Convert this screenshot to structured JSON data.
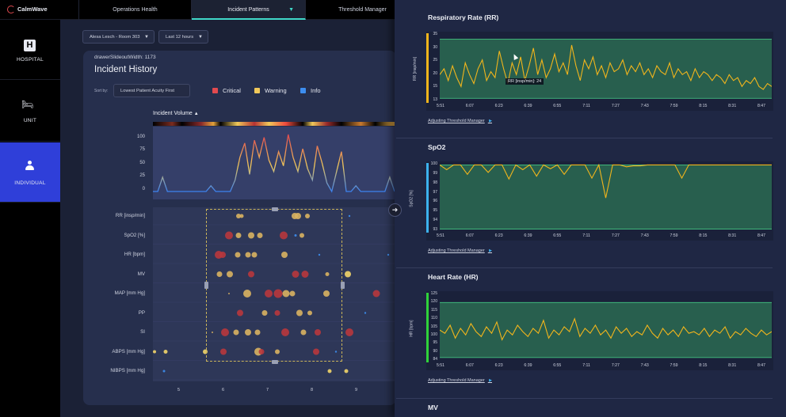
{
  "app": {
    "logo": "CalmWave"
  },
  "tabs": [
    {
      "label": "Operations Health"
    },
    {
      "label": "Incident Patterns"
    },
    {
      "label": "Threshold Manager"
    }
  ],
  "nav": [
    {
      "label": "HOSPITAL"
    },
    {
      "label": "UNIT"
    },
    {
      "label": "INDIVIDUAL"
    }
  ],
  "filters": {
    "patient": "Alesa Lesch - Room 303",
    "range": "Last 12 hours"
  },
  "debug": "drawerSlideoutWidth: 1173",
  "incident": {
    "title": "Incident History",
    "sort_label": "Sort by:",
    "sort_value": "Lowest Patient Acuity First",
    "legend": [
      {
        "name": "Critical",
        "color": "#e24a4f"
      },
      {
        "name": "Warning",
        "color": "#f0c85a"
      },
      {
        "name": "Info",
        "color": "#3d8ef0"
      }
    ],
    "volume_label": "Incident Volume",
    "volume_ticks": [
      "100",
      "75",
      "50",
      "25",
      "0"
    ],
    "volume": [
      0,
      0,
      25,
      0,
      0,
      0,
      0,
      0,
      0,
      0,
      0,
      0,
      10,
      0,
      0,
      0,
      0,
      20,
      60,
      85,
      30,
      90,
      60,
      95,
      55,
      35,
      70,
      45,
      100,
      60,
      35,
      75,
      40,
      20,
      80,
      50,
      15,
      0,
      35,
      70,
      0,
      0,
      10,
      0,
      0,
      0,
      0,
      0,
      0,
      25,
      0
    ],
    "rows": [
      "RR [insp/min]",
      "SpO2 [%]",
      "HR [bpm]",
      "MV",
      "MAP [mm Hg]",
      "PP",
      "SI",
      "ABPS [mm Hg]",
      "NIBPS [mm Hg]"
    ],
    "x_ticks": [
      "5",
      "6",
      "7",
      "8",
      "9"
    ]
  },
  "drawer_time_ticks": [
    "5:51",
    "6:07",
    "6:23",
    "6:39",
    "6:55",
    "7:11",
    "7:27",
    "7:43",
    "7:59",
    "8:15",
    "8:31",
    "8:47"
  ],
  "charts": [
    {
      "title": "Respiratory Rate (RR)",
      "ylabel": "RR [insp/min]",
      "yticks": [
        "35",
        "30",
        "25",
        "20",
        "15",
        "13"
      ],
      "ylim": [
        13,
        36
      ],
      "band": [
        14,
        34
      ],
      "accent": "#f2b51c",
      "values": [
        22,
        24,
        20,
        25,
        21,
        18,
        26,
        22,
        19,
        24,
        27,
        20,
        23,
        21,
        30,
        24,
        19,
        26,
        22,
        28,
        20,
        25,
        31,
        22,
        27,
        21,
        24,
        29,
        23,
        26,
        22,
        32,
        25,
        20,
        27,
        24,
        28,
        22,
        25,
        21,
        26,
        23,
        24,
        27,
        22,
        25,
        23,
        26,
        22,
        24,
        21,
        25,
        23,
        22,
        26,
        21,
        24,
        22,
        23,
        20,
        24,
        21,
        23,
        22,
        20,
        22,
        21,
        19,
        22,
        20,
        21,
        18,
        20,
        19,
        21,
        18,
        17,
        19,
        18
      ],
      "tooltip": "RR [insp/min]: 24",
      "link": "Adjusting Threshold Manager"
    },
    {
      "title": "SpO2",
      "ylabel": "SpO2 [%]",
      "yticks": [
        "100",
        "99",
        "98",
        "97",
        "96",
        "95",
        "94",
        "93"
      ],
      "ylim": [
        93,
        100.2
      ],
      "band": [
        93.2,
        100
      ],
      "accent": "#3cb2ee",
      "values": [
        100,
        99.5,
        100,
        100,
        99,
        100,
        100,
        99.2,
        100,
        100,
        98.5,
        100,
        99.5,
        100,
        98.8,
        100,
        99.6,
        100,
        99,
        100,
        100,
        100,
        98.6,
        100,
        96.5,
        100,
        100,
        99.8,
        99.9,
        99.9,
        100,
        100,
        100,
        100,
        100,
        98.6,
        100,
        100,
        100,
        100,
        100,
        100,
        100,
        100,
        100,
        100,
        100,
        100,
        100
      ],
      "link": "Adjusting Threshold Manager"
    },
    {
      "title": "Heart Rate (HR)",
      "ylabel": "HR [bpm]",
      "yticks": [
        "125",
        "120",
        "115",
        "110",
        "105",
        "100",
        "95",
        "90",
        "84"
      ],
      "ylim": [
        84,
        126
      ],
      "band": [
        86,
        120
      ],
      "accent": "#2fd23a",
      "values": [
        103,
        101,
        106,
        98,
        104,
        100,
        107,
        102,
        99,
        105,
        101,
        108,
        97,
        103,
        100,
        106,
        102,
        99,
        104,
        101,
        109,
        98,
        103,
        100,
        105,
        102,
        110,
        99,
        104,
        101,
        106,
        100,
        103,
        98,
        105,
        101,
        104,
        99,
        102,
        100,
        106,
        101,
        98,
        104,
        100,
        103,
        99,
        105,
        101,
        102,
        100,
        104,
        99,
        103,
        101,
        105,
        98,
        102,
        100,
        104,
        101,
        99,
        103,
        100,
        102
      ],
      "link": "Adjusting Threshold Manager"
    },
    {
      "title": "MV"
    }
  ]
}
